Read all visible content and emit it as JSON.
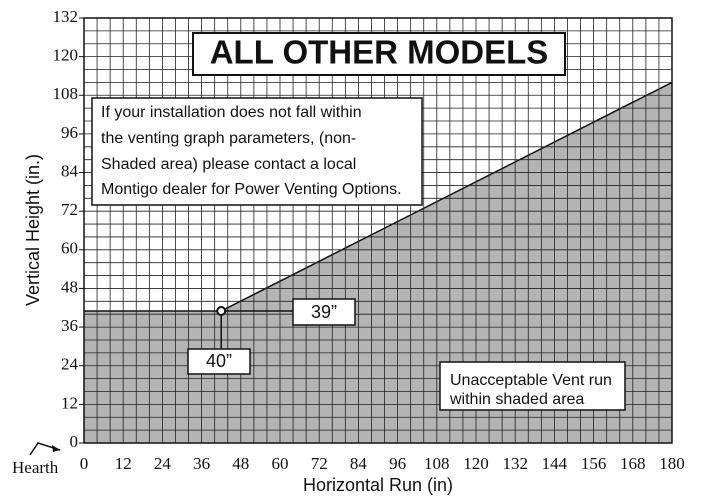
{
  "chart_data": {
    "type": "area",
    "title": "ALL OTHER MODELS",
    "x_label": "Horizontal Run (in)",
    "y_label": "Vertical Height (in.)",
    "x": [
      0,
      42,
      180
    ],
    "values": [
      41,
      41,
      112
    ],
    "color": "#b4b4b4",
    "xlim": [
      0,
      180
    ],
    "xticks": [
      0,
      12,
      24,
      36,
      48,
      60,
      72,
      84,
      96,
      108,
      120,
      132,
      144,
      156,
      168,
      180
    ],
    "ylim": [
      0,
      132
    ],
    "yticks": [
      0,
      12,
      24,
      36,
      48,
      60,
      72,
      84,
      96,
      108,
      120,
      132
    ],
    "grid": true,
    "grid_step": 4,
    "note_lines": [
      "If your installation does not fall within",
      "the venting graph parameters, (non-",
      "Shaded area) please contact a local",
      "Montigo dealer for Power Venting Options."
    ],
    "shaded_note_lines": [
      "Unacceptable Vent run",
      "within shaded area"
    ],
    "callouts": [
      "39”",
      "40”"
    ],
    "origin_label": "Hearth"
  }
}
